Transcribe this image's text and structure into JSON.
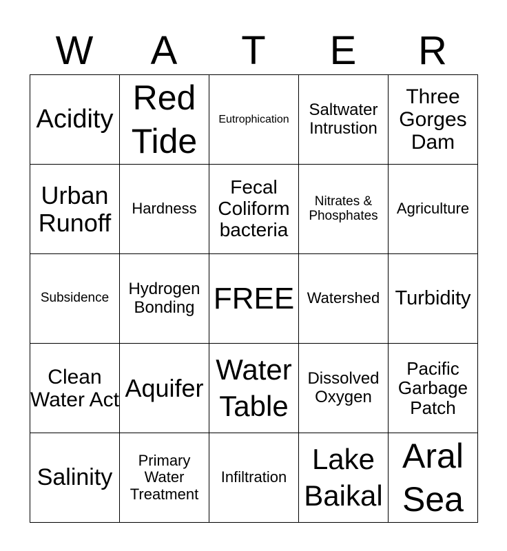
{
  "header": [
    "W",
    "A",
    "T",
    "E",
    "R"
  ],
  "cells": [
    [
      "Acidity",
      "Red Tide",
      "Eutrophication",
      "Saltwater Intrustion",
      "Three Gorges Dam"
    ],
    [
      "Urban Runoff",
      "Hardness",
      "Fecal Coliform bacteria",
      "Nitrates & Phosphates",
      "Agriculture"
    ],
    [
      "Subsidence",
      "Hydrogen Bonding",
      "FREE",
      "Watershed",
      "Turbidity"
    ],
    [
      "Clean Water Act",
      "Aquifer",
      "Water Table",
      "Dissolved Oxygen",
      "Pacific Garbage Patch"
    ],
    [
      "Salinity",
      "Primary Water Treatment",
      "Infiltration",
      "Lake Baikal",
      "Aral Sea"
    ]
  ]
}
